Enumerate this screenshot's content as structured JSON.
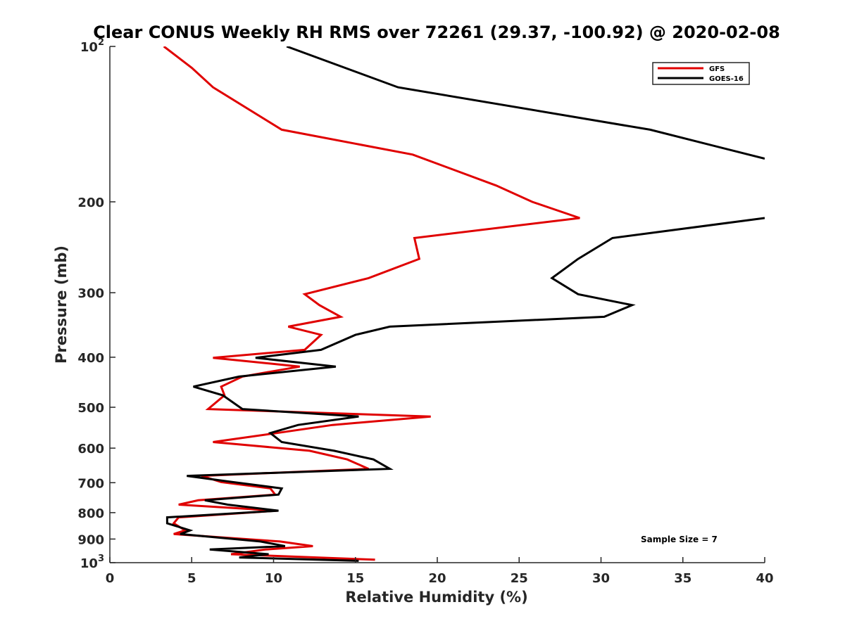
{
  "chart_data": {
    "type": "line",
    "title": "Clear CONUS Weekly RH RMS over 72261 (29.37, -100.92) @ 2020-02-08",
    "xlabel": "Relative Humidity (%)",
    "ylabel": "Pressure (mb)",
    "xlim": [
      0,
      40
    ],
    "ylim": [
      100,
      1000
    ],
    "yscale": "log",
    "y_reversed": true,
    "grid": false,
    "x_ticks": [
      "0",
      "5",
      "10",
      "15",
      "20",
      "25",
      "30",
      "35",
      "40"
    ],
    "y_ticks": [
      {
        "value": 100,
        "label": "10",
        "exp": "2"
      },
      {
        "value": 200,
        "label": "200"
      },
      {
        "value": 300,
        "label": "300"
      },
      {
        "value": 400,
        "label": "400"
      },
      {
        "value": 500,
        "label": "500"
      },
      {
        "value": 600,
        "label": "600"
      },
      {
        "value": 700,
        "label": "700"
      },
      {
        "value": 800,
        "label": "800"
      },
      {
        "value": 900,
        "label": "900"
      },
      {
        "value": 1000,
        "label": "10",
        "exp": "3"
      }
    ],
    "legend_position": "top-right",
    "annotation": "Sample Size = 7",
    "series": [
      {
        "name": "GFS",
        "color": "#e00000",
        "points": [
          [
            3.3,
            100
          ],
          [
            5.0,
            110
          ],
          [
            6.3,
            120
          ],
          [
            10.5,
            145
          ],
          [
            18.5,
            162
          ],
          [
            23.6,
            186
          ],
          [
            25.8,
            200
          ],
          [
            28.7,
            215
          ],
          [
            18.6,
            235
          ],
          [
            18.9,
            258
          ],
          [
            15.8,
            281
          ],
          [
            11.9,
            302
          ],
          [
            12.8,
            317
          ],
          [
            14.1,
            334
          ],
          [
            10.9,
            349
          ],
          [
            12.9,
            362
          ],
          [
            11.9,
            387
          ],
          [
            6.3,
            401
          ],
          [
            11.6,
            417
          ],
          [
            8.1,
            436
          ],
          [
            6.8,
            456
          ],
          [
            7.0,
            474
          ],
          [
            6.0,
            504
          ],
          [
            19.6,
            521
          ],
          [
            13.6,
            541
          ],
          [
            10.2,
            561
          ],
          [
            6.3,
            584
          ],
          [
            12.2,
            607
          ],
          [
            14.5,
            631
          ],
          [
            15.8,
            658
          ],
          [
            5.6,
            679
          ],
          [
            6.8,
            698
          ],
          [
            9.8,
            718
          ],
          [
            10.1,
            738
          ],
          [
            5.4,
            757
          ],
          [
            4.2,
            772
          ],
          [
            10.2,
            793
          ],
          [
            4.2,
            817
          ],
          [
            3.9,
            839
          ],
          [
            4.6,
            866
          ],
          [
            3.9,
            880
          ],
          [
            10.4,
            910
          ],
          [
            12.4,
            929
          ],
          [
            9.5,
            943
          ],
          [
            7.4,
            963
          ],
          [
            16.2,
            987
          ]
        ]
      },
      {
        "name": "GOES-16",
        "color": "#000000",
        "points": [
          [
            10.8,
            100
          ],
          [
            17.6,
            120
          ],
          [
            33.0,
            145
          ],
          [
            40.0,
            165
          ],
          [
            null,
            null
          ],
          [
            40.0,
            215
          ],
          [
            30.7,
            235
          ],
          [
            28.6,
            258
          ],
          [
            27.0,
            281
          ],
          [
            28.6,
            302
          ],
          [
            31.9,
            317
          ],
          [
            30.2,
            334
          ],
          [
            17.1,
            349
          ],
          [
            15.0,
            362
          ],
          [
            12.9,
            387
          ],
          [
            8.9,
            401
          ],
          [
            13.8,
            417
          ],
          [
            7.9,
            436
          ],
          [
            5.1,
            456
          ],
          [
            6.9,
            474
          ],
          [
            8.1,
            504
          ],
          [
            15.2,
            521
          ],
          [
            11.5,
            541
          ],
          [
            9.8,
            561
          ],
          [
            10.5,
            584
          ],
          [
            13.7,
            607
          ],
          [
            16.1,
            631
          ],
          [
            17.1,
            658
          ],
          [
            4.7,
            679
          ],
          [
            7.5,
            698
          ],
          [
            10.5,
            718
          ],
          [
            10.3,
            738
          ],
          [
            5.8,
            757
          ],
          [
            7.2,
            772
          ],
          [
            10.3,
            793
          ],
          [
            3.5,
            817
          ],
          [
            3.5,
            839
          ],
          [
            4.9,
            866
          ],
          [
            4.3,
            880
          ],
          [
            9.2,
            910
          ],
          [
            10.7,
            929
          ],
          [
            6.1,
            943
          ],
          [
            9.7,
            963
          ],
          [
            7.9,
            977
          ],
          [
            15.2,
            992
          ]
        ]
      }
    ]
  }
}
